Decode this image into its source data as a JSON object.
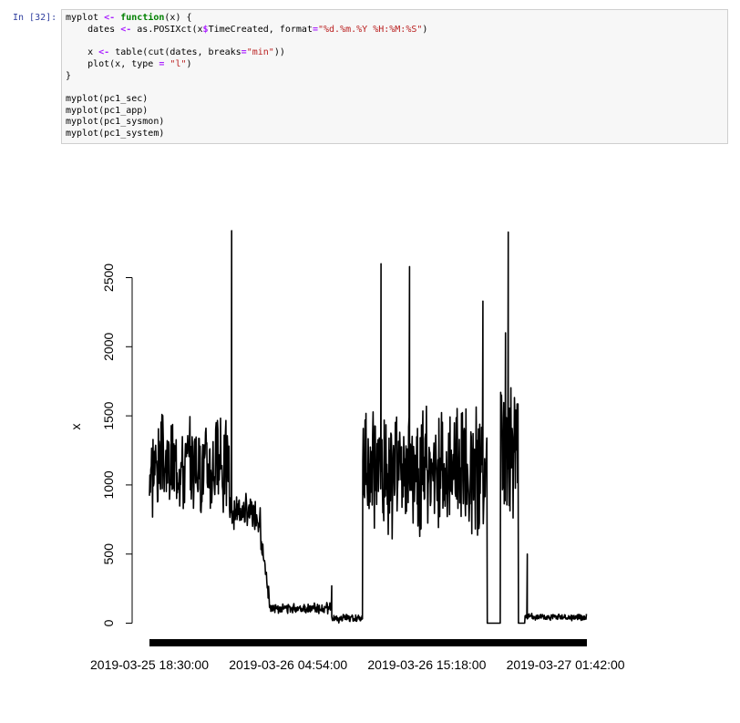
{
  "cell": {
    "prompt": "In [32]:",
    "code_lines": [
      [
        {
          "t": "myplot "
        },
        {
          "t": "<-",
          "c": "op"
        },
        {
          "t": " "
        },
        {
          "t": "function",
          "c": "kw"
        },
        {
          "t": "(x) {"
        }
      ],
      [
        {
          "t": "    dates "
        },
        {
          "t": "<-",
          "c": "op"
        },
        {
          "t": " as.POSIXct(x"
        },
        {
          "t": "$",
          "c": "op"
        },
        {
          "t": "TimeCreated, format"
        },
        {
          "t": "=",
          "c": "op"
        },
        {
          "t": "\"%d.%m.%Y %H:%M:%S\"",
          "c": "str"
        },
        {
          "t": ")"
        }
      ],
      [],
      [
        {
          "t": "    x "
        },
        {
          "t": "<-",
          "c": "op"
        },
        {
          "t": " table(cut(dates, breaks"
        },
        {
          "t": "=",
          "c": "op"
        },
        {
          "t": "\"min\"",
          "c": "str"
        },
        {
          "t": "))"
        }
      ],
      [
        {
          "t": "    plot(x, type "
        },
        {
          "t": "=",
          "c": "op"
        },
        {
          "t": " "
        },
        {
          "t": "\"l\"",
          "c": "str"
        },
        {
          "t": ")"
        }
      ],
      [
        {
          "t": "}"
        }
      ],
      [],
      [
        {
          "t": "myplot(pc1_sec)"
        }
      ],
      [
        {
          "t": "myplot(pc1_app)"
        }
      ],
      [
        {
          "t": "myplot(pc1_sysmon)"
        }
      ],
      [
        {
          "t": "myplot(pc1_system)"
        }
      ]
    ]
  },
  "chart_data": {
    "type": "line",
    "ylabel": "x",
    "xlabel": "",
    "ylim": [
      0,
      2500
    ],
    "y_ticks": [
      0,
      500,
      1000,
      1500,
      2000,
      2500
    ],
    "x_tick_labels": [
      "2019-03-25 18:30:00",
      "2019-03-26 04:54:00",
      "2019-03-26 15:18:00",
      "2019-03-27 01:42:00"
    ],
    "x_tick_minutes": [
      0,
      624,
      1248,
      1872
    ],
    "x_range_minutes": [
      0,
      1968
    ],
    "segments": [
      {
        "from": 0,
        "to": 360,
        "mean": 1150,
        "amp": 350,
        "seed": 3
      },
      {
        "from": 360,
        "to": 500,
        "mean": 820,
        "amp": 130,
        "seed": 7,
        "trend_to": 780
      },
      {
        "from": 500,
        "to": 540,
        "mean": 600,
        "amp": 90,
        "seed": 11,
        "trend_to": 200
      },
      {
        "from": 540,
        "to": 820,
        "mean": 110,
        "amp": 35,
        "seed": 13
      },
      {
        "from": 820,
        "to": 960,
        "mean": 35,
        "amp": 30,
        "seed": 17
      },
      {
        "from": 960,
        "to": 1520,
        "mean": 1100,
        "amp": 450,
        "seed": 19
      },
      {
        "from": 1520,
        "to": 1580,
        "mean": 0,
        "amp": 0,
        "seed": 23
      },
      {
        "from": 1580,
        "to": 1660,
        "mean": 1250,
        "amp": 500,
        "seed": 29
      },
      {
        "from": 1660,
        "to": 1690,
        "mean": 0,
        "amp": 0,
        "seed": 31
      },
      {
        "from": 1690,
        "to": 1968,
        "mean": 45,
        "amp": 25,
        "seed": 37
      }
    ],
    "spikes": [
      {
        "x": 370,
        "y": 2840
      },
      {
        "x": 820,
        "y": 270
      },
      {
        "x": 1500,
        "y": 2330
      },
      {
        "x": 1614,
        "y": 2830
      },
      {
        "x": 1602,
        "y": 2100
      },
      {
        "x": 1700,
        "y": 500
      },
      {
        "x": 1042,
        "y": 2600
      },
      {
        "x": 1170,
        "y": 2580
      }
    ]
  }
}
